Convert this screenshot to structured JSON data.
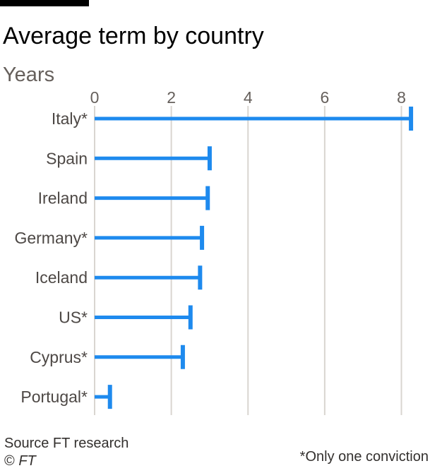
{
  "header": {
    "title": "Average term by country",
    "subtitle": "Years"
  },
  "footer": {
    "source": "Source FT research",
    "copyright_symbol": "©",
    "copyright_name": "FT",
    "footnote": "*Only one conviction"
  },
  "colors": {
    "bar": "#1e8aee",
    "grid": "#d9d5d0",
    "tick_label": "#66605c",
    "category_label": "#4d4845"
  },
  "chart_data": {
    "type": "bar",
    "orientation": "horizontal",
    "title": "Average term by country",
    "subtitle": "Years",
    "categories": [
      "Italy*",
      "Spain",
      "Ireland",
      "Germany*",
      "Iceland",
      "US*",
      "Cyprus*",
      "Portugal*"
    ],
    "values": [
      8.25,
      3.0,
      2.95,
      2.8,
      2.75,
      2.5,
      2.3,
      0.4
    ],
    "xlim": [
      0,
      8.4
    ],
    "xticks": [
      0,
      2,
      4,
      6,
      8
    ],
    "xtick_labels": [
      "0",
      "2",
      "4",
      "6",
      "8"
    ],
    "grid": true,
    "legend": "none"
  }
}
